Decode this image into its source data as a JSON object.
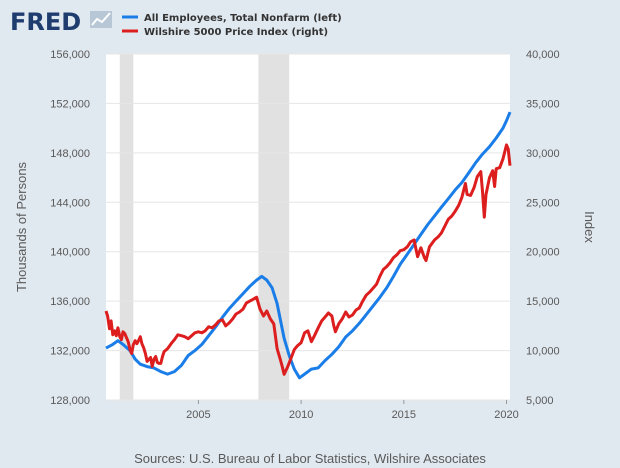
{
  "logo": {
    "text": "FRED",
    "icon": "trend-chart-icon"
  },
  "legend": [
    {
      "label": "All Employees, Total Nonfarm (left)",
      "color": "#1a7de8"
    },
    {
      "label": "Wilshire 5000 Price Index (right)",
      "color": "#dd1e1e"
    }
  ],
  "source": "Sources: U.S. Bureau of Labor Statistics, Wilshire Associates",
  "chart_data": {
    "type": "line",
    "ylabel_left": "Thousands of Persons",
    "ylabel_right": "Index",
    "x_ticks": [
      "2005",
      "2010",
      "2015",
      "2020"
    ],
    "xlim": [
      2000.5,
      2020.17
    ],
    "ylim_left": [
      128000,
      156000
    ],
    "ylim_right": [
      5000,
      40000
    ],
    "y_ticks_left": [
      "128,000",
      "132,000",
      "136,000",
      "140,000",
      "144,000",
      "148,000",
      "152,000",
      "156,000"
    ],
    "y_ticks_right": [
      "5,000",
      "10,000",
      "15,000",
      "20,000",
      "25,000",
      "30,000",
      "35,000",
      "40,000"
    ],
    "grid": "horizontal",
    "legend_position": "top-left",
    "recessions": [
      [
        2001.17,
        2001.83
      ],
      [
        2007.92,
        2009.42
      ]
    ],
    "series": [
      {
        "name": "All Employees, Total Nonfarm",
        "axis": "left",
        "color": "#1a7de8",
        "points": [
          [
            2000.5,
            132200
          ],
          [
            2000.83,
            132500
          ],
          [
            2001.08,
            132800
          ],
          [
            2001.33,
            132500
          ],
          [
            2001.67,
            132000
          ],
          [
            2001.92,
            131300
          ],
          [
            2002.17,
            130900
          ],
          [
            2002.5,
            130700
          ],
          [
            2002.83,
            130600
          ],
          [
            2003.17,
            130300
          ],
          [
            2003.5,
            130100
          ],
          [
            2003.83,
            130300
          ],
          [
            2004.17,
            130800
          ],
          [
            2004.5,
            131600
          ],
          [
            2004.83,
            132000
          ],
          [
            2005.17,
            132500
          ],
          [
            2005.5,
            133200
          ],
          [
            2005.83,
            133900
          ],
          [
            2006.17,
            134700
          ],
          [
            2006.5,
            135400
          ],
          [
            2006.83,
            136000
          ],
          [
            2007.17,
            136600
          ],
          [
            2007.5,
            137200
          ],
          [
            2007.83,
            137700
          ],
          [
            2008.08,
            138000
          ],
          [
            2008.33,
            137700
          ],
          [
            2008.58,
            137100
          ],
          [
            2008.83,
            135800
          ],
          [
            2009.0,
            134400
          ],
          [
            2009.17,
            133000
          ],
          [
            2009.42,
            131600
          ],
          [
            2009.67,
            130500
          ],
          [
            2009.92,
            129800
          ],
          [
            2010.17,
            130100
          ],
          [
            2010.5,
            130500
          ],
          [
            2010.83,
            130600
          ],
          [
            2011.17,
            131200
          ],
          [
            2011.5,
            131700
          ],
          [
            2011.83,
            132300
          ],
          [
            2012.17,
            133100
          ],
          [
            2012.5,
            133600
          ],
          [
            2012.83,
            134200
          ],
          [
            2013.17,
            134900
          ],
          [
            2013.5,
            135600
          ],
          [
            2013.83,
            136300
          ],
          [
            2014.17,
            137100
          ],
          [
            2014.5,
            138000
          ],
          [
            2014.83,
            139000
          ],
          [
            2015.17,
            139800
          ],
          [
            2015.5,
            140600
          ],
          [
            2015.83,
            141400
          ],
          [
            2016.17,
            142200
          ],
          [
            2016.5,
            142900
          ],
          [
            2016.83,
            143600
          ],
          [
            2017.17,
            144300
          ],
          [
            2017.5,
            145000
          ],
          [
            2017.83,
            145600
          ],
          [
            2018.17,
            146400
          ],
          [
            2018.5,
            147200
          ],
          [
            2018.83,
            147900
          ],
          [
            2019.17,
            148500
          ],
          [
            2019.5,
            149200
          ],
          [
            2019.83,
            150000
          ],
          [
            2020.0,
            150600
          ],
          [
            2020.17,
            151300
          ]
        ]
      },
      {
        "name": "Wilshire 5000 Price Index",
        "axis": "right",
        "color": "#dd1e1e",
        "points": [
          [
            2000.5,
            14000
          ],
          [
            2000.58,
            13500
          ],
          [
            2000.67,
            12200
          ],
          [
            2000.75,
            13000
          ],
          [
            2000.83,
            11600
          ],
          [
            2000.92,
            12000
          ],
          [
            2001.0,
            11500
          ],
          [
            2001.08,
            12300
          ],
          [
            2001.17,
            11400
          ],
          [
            2001.25,
            11100
          ],
          [
            2001.33,
            11900
          ],
          [
            2001.42,
            11700
          ],
          [
            2001.5,
            11300
          ],
          [
            2001.58,
            10900
          ],
          [
            2001.67,
            10100
          ],
          [
            2001.75,
            9700
          ],
          [
            2001.83,
            10600
          ],
          [
            2001.92,
            11000
          ],
          [
            2002.0,
            10700
          ],
          [
            2002.08,
            11000
          ],
          [
            2002.17,
            11400
          ],
          [
            2002.25,
            10700
          ],
          [
            2002.33,
            10300
          ],
          [
            2002.42,
            9700
          ],
          [
            2002.5,
            8900
          ],
          [
            2002.58,
            9100
          ],
          [
            2002.67,
            9300
          ],
          [
            2002.75,
            8400
          ],
          [
            2002.83,
            9100
          ],
          [
            2002.92,
            9400
          ],
          [
            2003.0,
            8800
          ],
          [
            2003.08,
            8700
          ],
          [
            2003.17,
            8700
          ],
          [
            2003.25,
            9400
          ],
          [
            2003.33,
            9900
          ],
          [
            2003.5,
            10200
          ],
          [
            2003.67,
            10700
          ],
          [
            2003.83,
            11100
          ],
          [
            2004.0,
            11600
          ],
          [
            2004.17,
            11500
          ],
          [
            2004.33,
            11400
          ],
          [
            2004.5,
            11200
          ],
          [
            2004.67,
            11500
          ],
          [
            2004.83,
            11800
          ],
          [
            2005.0,
            11900
          ],
          [
            2005.17,
            11800
          ],
          [
            2005.33,
            12000
          ],
          [
            2005.5,
            12400
          ],
          [
            2005.67,
            12300
          ],
          [
            2005.83,
            12600
          ],
          [
            2006.0,
            13000
          ],
          [
            2006.17,
            13100
          ],
          [
            2006.33,
            12500
          ],
          [
            2006.5,
            12800
          ],
          [
            2006.67,
            13200
          ],
          [
            2006.83,
            13700
          ],
          [
            2007.0,
            13900
          ],
          [
            2007.17,
            14200
          ],
          [
            2007.33,
            14800
          ],
          [
            2007.5,
            15000
          ],
          [
            2007.67,
            15200
          ],
          [
            2007.83,
            15400
          ],
          [
            2008.0,
            14200
          ],
          [
            2008.17,
            13500
          ],
          [
            2008.33,
            14000
          ],
          [
            2008.5,
            13200
          ],
          [
            2008.67,
            12700
          ],
          [
            2008.83,
            10200
          ],
          [
            2009.0,
            9000
          ],
          [
            2009.08,
            8400
          ],
          [
            2009.17,
            7600
          ],
          [
            2009.33,
            8300
          ],
          [
            2009.5,
            9200
          ],
          [
            2009.67,
            10100
          ],
          [
            2009.83,
            10500
          ],
          [
            2010.0,
            10800
          ],
          [
            2010.17,
            11800
          ],
          [
            2010.33,
            12000
          ],
          [
            2010.5,
            10900
          ],
          [
            2010.67,
            11600
          ],
          [
            2010.83,
            12300
          ],
          [
            2011.0,
            13000
          ],
          [
            2011.17,
            13400
          ],
          [
            2011.33,
            13800
          ],
          [
            2011.5,
            13500
          ],
          [
            2011.58,
            12600
          ],
          [
            2011.67,
            11900
          ],
          [
            2011.83,
            12700
          ],
          [
            2012.0,
            13200
          ],
          [
            2012.17,
            13900
          ],
          [
            2012.33,
            13400
          ],
          [
            2012.5,
            13600
          ],
          [
            2012.67,
            14100
          ],
          [
            2012.83,
            14300
          ],
          [
            2013.0,
            15000
          ],
          [
            2013.17,
            15600
          ],
          [
            2013.33,
            15900
          ],
          [
            2013.5,
            16300
          ],
          [
            2013.67,
            16700
          ],
          [
            2013.83,
            17500
          ],
          [
            2014.0,
            18200
          ],
          [
            2014.17,
            18500
          ],
          [
            2014.33,
            18900
          ],
          [
            2014.5,
            19400
          ],
          [
            2014.67,
            19700
          ],
          [
            2014.83,
            20100
          ],
          [
            2015.0,
            20200
          ],
          [
            2015.17,
            20500
          ],
          [
            2015.33,
            21000
          ],
          [
            2015.5,
            21200
          ],
          [
            2015.58,
            20400
          ],
          [
            2015.67,
            19500
          ],
          [
            2015.83,
            20400
          ],
          [
            2016.0,
            19400
          ],
          [
            2016.08,
            19100
          ],
          [
            2016.25,
            20500
          ],
          [
            2016.5,
            21200
          ],
          [
            2016.67,
            21500
          ],
          [
            2016.83,
            21900
          ],
          [
            2017.0,
            22600
          ],
          [
            2017.17,
            23300
          ],
          [
            2017.33,
            23600
          ],
          [
            2017.5,
            24100
          ],
          [
            2017.67,
            24700
          ],
          [
            2017.83,
            25500
          ],
          [
            2018.0,
            26900
          ],
          [
            2018.08,
            25800
          ],
          [
            2018.25,
            25700
          ],
          [
            2018.42,
            26500
          ],
          [
            2018.58,
            27600
          ],
          [
            2018.75,
            28100
          ],
          [
            2018.83,
            26100
          ],
          [
            2018.92,
            23500
          ],
          [
            2019.0,
            25800
          ],
          [
            2019.17,
            27500
          ],
          [
            2019.33,
            28200
          ],
          [
            2019.42,
            26600
          ],
          [
            2019.5,
            28400
          ],
          [
            2019.67,
            28500
          ],
          [
            2019.83,
            29400
          ],
          [
            2020.0,
            30800
          ],
          [
            2020.08,
            30400
          ],
          [
            2020.17,
            28700
          ]
        ]
      }
    ]
  }
}
